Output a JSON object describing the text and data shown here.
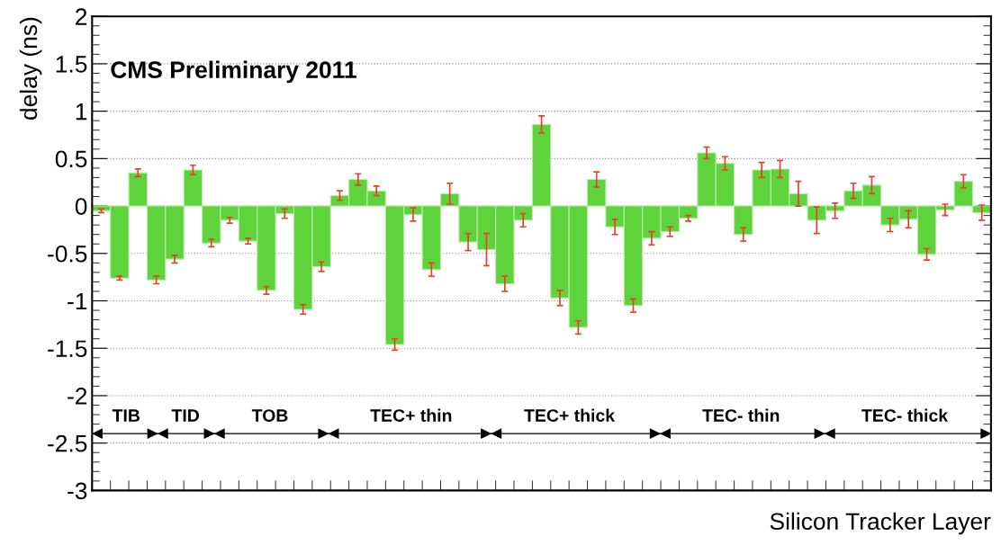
{
  "chart_data": {
    "type": "bar",
    "title": "CMS Preliminary 2011",
    "xlabel": "Silicon Tracker Layer",
    "ylabel": "delay (ns)",
    "categories": [
      null,
      null,
      null,
      null,
      null,
      null,
      null,
      null,
      null,
      null,
      null,
      null,
      null,
      null,
      null,
      null,
      null,
      null,
      null,
      null,
      null,
      null,
      null,
      null,
      null,
      null,
      null,
      null,
      null,
      null,
      null,
      null,
      null,
      null,
      null,
      null,
      null,
      null,
      null,
      null,
      null,
      null,
      null,
      null,
      null,
      null,
      null,
      null,
      null
    ],
    "values": [
      -0.05,
      -0.76,
      0.35,
      -0.78,
      -0.56,
      0.38,
      -0.39,
      -0.15,
      -0.37,
      -0.89,
      -0.08,
      -1.09,
      -0.64,
      0.11,
      0.28,
      0.16,
      -1.46,
      -0.09,
      -0.67,
      0.13,
      -0.38,
      -0.46,
      -0.82,
      -0.15,
      0.86,
      -0.97,
      -1.28,
      0.28,
      -0.22,
      -1.05,
      -0.34,
      -0.27,
      -0.13,
      0.56,
      0.45,
      -0.3,
      0.38,
      0.39,
      0.13,
      -0.15,
      -0.05,
      0.16,
      0.22,
      -0.2,
      -0.14,
      -0.51,
      -0.04,
      0.26,
      -0.07
    ],
    "errors": [
      0.02,
      0.02,
      0.04,
      0.04,
      0.04,
      0.05,
      0.04,
      0.03,
      0.03,
      0.04,
      0.05,
      0.05,
      0.05,
      0.05,
      0.06,
      0.05,
      0.06,
      0.07,
      0.07,
      0.11,
      0.09,
      0.17,
      0.08,
      0.07,
      0.09,
      0.08,
      0.07,
      0.08,
      0.08,
      0.07,
      0.07,
      0.05,
      0.03,
      0.06,
      0.07,
      0.07,
      0.08,
      0.09,
      0.13,
      0.14,
      0.08,
      0.08,
      0.09,
      0.07,
      0.09,
      0.06,
      0.06,
      0.07,
      0.08
    ],
    "color": "#5fd33c",
    "ylim": [
      -3,
      2
    ],
    "yticks": [
      -3,
      -2.5,
      -2,
      -1.5,
      -1,
      -0.5,
      0,
      0.5,
      1,
      1.5,
      2
    ],
    "tick_labels": "y",
    "grid": "y",
    "ref_lines": [
      {
        "axis": "y",
        "value": -2.4,
        "label": null,
        "color": "#000000"
      }
    ],
    "annotations": [
      "TIB",
      "TID",
      "TOB",
      "TEC+ thin",
      "TEC+ thick",
      "TEC- thin",
      "TEC- thick"
    ]
  }
}
